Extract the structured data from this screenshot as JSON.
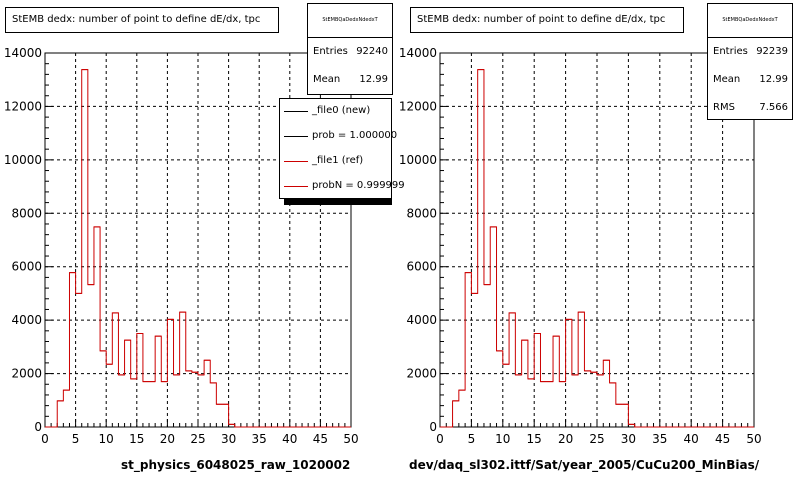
{
  "colors": {
    "ref": "#cc0000",
    "new": "#000000",
    "grid": "#000000",
    "frame": "#000000"
  },
  "chart_data": [
    {
      "type": "bar",
      "title": "StEMB dedx: number of point to define dE/dx, tpc",
      "xlabel": "st_physics_6048025_raw_1020002",
      "ylabel": "",
      "xlim": [
        0,
        50
      ],
      "ylim": [
        0,
        14000
      ],
      "x_ticks": [
        "0",
        "5",
        "10",
        "15",
        "20",
        "25",
        "30",
        "35",
        "40",
        "45",
        "50"
      ],
      "y_ticks": [
        "0",
        "2000",
        "4000",
        "6000",
        "8000",
        "10000",
        "12000",
        "14000"
      ],
      "grid": true,
      "bin_width": 1,
      "x": [
        0,
        1,
        2,
        3,
        4,
        5,
        6,
        7,
        8,
        9,
        10,
        11,
        12,
        13,
        14,
        15,
        16,
        17,
        18,
        19,
        20,
        21,
        22,
        23,
        24,
        25,
        26,
        27,
        28,
        29,
        30,
        31,
        32,
        33,
        34,
        35,
        36,
        37,
        38,
        39,
        40,
        41,
        42,
        43,
        44,
        45,
        46,
        47,
        48,
        49
      ],
      "series": [
        {
          "values": [
            0,
            0,
            980,
            1380,
            5780,
            5000,
            13380,
            5330,
            7490,
            2850,
            2350,
            4270,
            1950,
            3250,
            1800,
            3500,
            1700,
            1700,
            3400,
            1700,
            4030,
            1950,
            4300,
            2100,
            2050,
            1950,
            2500,
            1650,
            850,
            850,
            100,
            0,
            0,
            0,
            0,
            0,
            0,
            0,
            0,
            0,
            0,
            0,
            0,
            0,
            0,
            0,
            0,
            0,
            0,
            0
          ]
        }
      ],
      "stats": {
        "name": "StEMBQaDedxNdedxT",
        "entries_label": "Entries",
        "entries": "92240",
        "mean_label": "Mean",
        "mean": "12.99"
      },
      "legend": [
        {
          "label": "_file0 (new)"
        },
        {
          "label": "prob = 1.000000"
        },
        {
          "label": "_file1 (ref)"
        },
        {
          "label": "probN = 0.999999"
        }
      ]
    },
    {
      "type": "bar",
      "title": "StEMB dedx: number of point to define dE/dx, tpc",
      "xlabel": "dev/daq_sl302.ittf/Sat/year_2005/CuCu200_MinBias/",
      "ylabel": "",
      "xlim": [
        0,
        50
      ],
      "ylim": [
        0,
        14000
      ],
      "x_ticks": [
        "0",
        "5",
        "10",
        "15",
        "20",
        "25",
        "30",
        "35",
        "40",
        "45",
        "50"
      ],
      "y_ticks": [
        "0",
        "2000",
        "4000",
        "6000",
        "8000",
        "10000",
        "12000",
        "14000"
      ],
      "grid": true,
      "bin_width": 1,
      "x": [
        0,
        1,
        2,
        3,
        4,
        5,
        6,
        7,
        8,
        9,
        10,
        11,
        12,
        13,
        14,
        15,
        16,
        17,
        18,
        19,
        20,
        21,
        22,
        23,
        24,
        25,
        26,
        27,
        28,
        29,
        30,
        31,
        32,
        33,
        34,
        35,
        36,
        37,
        38,
        39,
        40,
        41,
        42,
        43,
        44,
        45,
        46,
        47,
        48,
        49
      ],
      "series": [
        {
          "values": [
            0,
            0,
            980,
            1380,
            5780,
            5000,
            13380,
            5330,
            7490,
            2850,
            2350,
            4270,
            1950,
            3250,
            1800,
            3500,
            1700,
            1700,
            3400,
            1700,
            4030,
            1950,
            4300,
            2100,
            2050,
            1950,
            2500,
            1650,
            850,
            850,
            100,
            0,
            0,
            0,
            0,
            0,
            0,
            0,
            0,
            0,
            0,
            0,
            0,
            0,
            0,
            0,
            0,
            0,
            0,
            0
          ]
        }
      ],
      "stats": {
        "name": "StEMBQaDedxNdedxT",
        "entries_label": "Entries",
        "entries": "92239",
        "mean_label": "Mean",
        "mean": "12.99",
        "rms_label": "RMS",
        "rms": "7.566"
      }
    }
  ]
}
